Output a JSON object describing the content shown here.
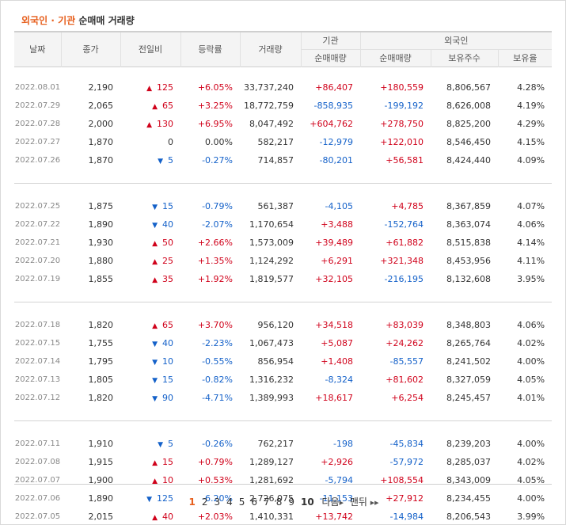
{
  "title": {
    "part1": "외국인",
    "sep": "·",
    "part2": "기관",
    "part3": "순매매 거래량"
  },
  "headers": {
    "date": "날짜",
    "close": "종가",
    "change": "전일비",
    "rate": "등락률",
    "volume": "거래량",
    "inst": "기관",
    "inst_net": "순매매량",
    "foreign": "외국인",
    "foreign_net": "순매매량",
    "foreign_shares": "보유주수",
    "foreign_ratio": "보유율"
  },
  "colors": {
    "up": "#d0021b",
    "down": "#1461c9",
    "accent": "#e75f1d"
  },
  "groups": [
    [
      {
        "date": "2022.08.01",
        "close": "2,190",
        "dir": "up",
        "chg": "125",
        "rate": "+6.05%",
        "vol": "33,737,240",
        "inst": "+86,407",
        "frn": "+180,559",
        "shares": "8,806,567",
        "ratio": "4.28%"
      },
      {
        "date": "2022.07.29",
        "close": "2,065",
        "dir": "up",
        "chg": "65",
        "rate": "+3.25%",
        "vol": "18,772,759",
        "inst": "-858,935",
        "frn": "-199,192",
        "shares": "8,626,008",
        "ratio": "4.19%"
      },
      {
        "date": "2022.07.28",
        "close": "2,000",
        "dir": "up",
        "chg": "130",
        "rate": "+6.95%",
        "vol": "8,047,492",
        "inst": "+604,762",
        "frn": "+278,750",
        "shares": "8,825,200",
        "ratio": "4.29%"
      },
      {
        "date": "2022.07.27",
        "close": "1,870",
        "dir": "none",
        "chg": "0",
        "rate": "0.00%",
        "vol": "582,217",
        "inst": "-12,979",
        "frn": "+122,010",
        "shares": "8,546,450",
        "ratio": "4.15%"
      },
      {
        "date": "2022.07.26",
        "close": "1,870",
        "dir": "down",
        "chg": "5",
        "rate": "-0.27%",
        "vol": "714,857",
        "inst": "-80,201",
        "frn": "+56,581",
        "shares": "8,424,440",
        "ratio": "4.09%"
      }
    ],
    [
      {
        "date": "2022.07.25",
        "close": "1,875",
        "dir": "down",
        "chg": "15",
        "rate": "-0.79%",
        "vol": "561,387",
        "inst": "-4,105",
        "frn": "+4,785",
        "shares": "8,367,859",
        "ratio": "4.07%"
      },
      {
        "date": "2022.07.22",
        "close": "1,890",
        "dir": "down",
        "chg": "40",
        "rate": "-2.07%",
        "vol": "1,170,654",
        "inst": "+3,488",
        "frn": "-152,764",
        "shares": "8,363,074",
        "ratio": "4.06%"
      },
      {
        "date": "2022.07.21",
        "close": "1,930",
        "dir": "up",
        "chg": "50",
        "rate": "+2.66%",
        "vol": "1,573,009",
        "inst": "+39,489",
        "frn": "+61,882",
        "shares": "8,515,838",
        "ratio": "4.14%"
      },
      {
        "date": "2022.07.20",
        "close": "1,880",
        "dir": "up",
        "chg": "25",
        "rate": "+1.35%",
        "vol": "1,124,292",
        "inst": "+6,291",
        "frn": "+321,348",
        "shares": "8,453,956",
        "ratio": "4.11%"
      },
      {
        "date": "2022.07.19",
        "close": "1,855",
        "dir": "up",
        "chg": "35",
        "rate": "+1.92%",
        "vol": "1,819,577",
        "inst": "+32,105",
        "frn": "-216,195",
        "shares": "8,132,608",
        "ratio": "3.95%"
      }
    ],
    [
      {
        "date": "2022.07.18",
        "close": "1,820",
        "dir": "up",
        "chg": "65",
        "rate": "+3.70%",
        "vol": "956,120",
        "inst": "+34,518",
        "frn": "+83,039",
        "shares": "8,348,803",
        "ratio": "4.06%"
      },
      {
        "date": "2022.07.15",
        "close": "1,755",
        "dir": "down",
        "chg": "40",
        "rate": "-2.23%",
        "vol": "1,067,473",
        "inst": "+5,087",
        "frn": "+24,262",
        "shares": "8,265,764",
        "ratio": "4.02%"
      },
      {
        "date": "2022.07.14",
        "close": "1,795",
        "dir": "down",
        "chg": "10",
        "rate": "-0.55%",
        "vol": "856,954",
        "inst": "+1,408",
        "frn": "-85,557",
        "shares": "8,241,502",
        "ratio": "4.00%"
      },
      {
        "date": "2022.07.13",
        "close": "1,805",
        "dir": "down",
        "chg": "15",
        "rate": "-0.82%",
        "vol": "1,316,232",
        "inst": "-8,324",
        "frn": "+81,602",
        "shares": "8,327,059",
        "ratio": "4.05%"
      },
      {
        "date": "2022.07.12",
        "close": "1,820",
        "dir": "down",
        "chg": "90",
        "rate": "-4.71%",
        "vol": "1,389,993",
        "inst": "+18,617",
        "frn": "+6,254",
        "shares": "8,245,457",
        "ratio": "4.01%"
      }
    ],
    [
      {
        "date": "2022.07.11",
        "close": "1,910",
        "dir": "down",
        "chg": "5",
        "rate": "-0.26%",
        "vol": "762,217",
        "inst": "-198",
        "frn": "-45,834",
        "shares": "8,239,203",
        "ratio": "4.00%"
      },
      {
        "date": "2022.07.08",
        "close": "1,915",
        "dir": "up",
        "chg": "15",
        "rate": "+0.79%",
        "vol": "1,289,127",
        "inst": "+2,926",
        "frn": "-57,972",
        "shares": "8,285,037",
        "ratio": "4.02%"
      },
      {
        "date": "2022.07.07",
        "close": "1,900",
        "dir": "up",
        "chg": "10",
        "rate": "+0.53%",
        "vol": "1,281,692",
        "inst": "-5,794",
        "frn": "+108,554",
        "shares": "8,343,009",
        "ratio": "4.05%"
      },
      {
        "date": "2022.07.06",
        "close": "1,890",
        "dir": "down",
        "chg": "125",
        "rate": "-6.20%",
        "vol": "2,726,075",
        "inst": "-11,153",
        "frn": "+27,912",
        "shares": "8,234,455",
        "ratio": "4.00%"
      },
      {
        "date": "2022.07.05",
        "close": "2,015",
        "dir": "up",
        "chg": "40",
        "rate": "+2.03%",
        "vol": "1,410,331",
        "inst": "+13,742",
        "frn": "-14,984",
        "shares": "8,206,543",
        "ratio": "3.99%"
      }
    ]
  ],
  "pagination": {
    "pages": [
      "1",
      "2",
      "3",
      "4",
      "5",
      "6",
      "7",
      "8",
      "9",
      "10"
    ],
    "current": "1",
    "next_label": "다음",
    "last_label": "맨뒤"
  }
}
